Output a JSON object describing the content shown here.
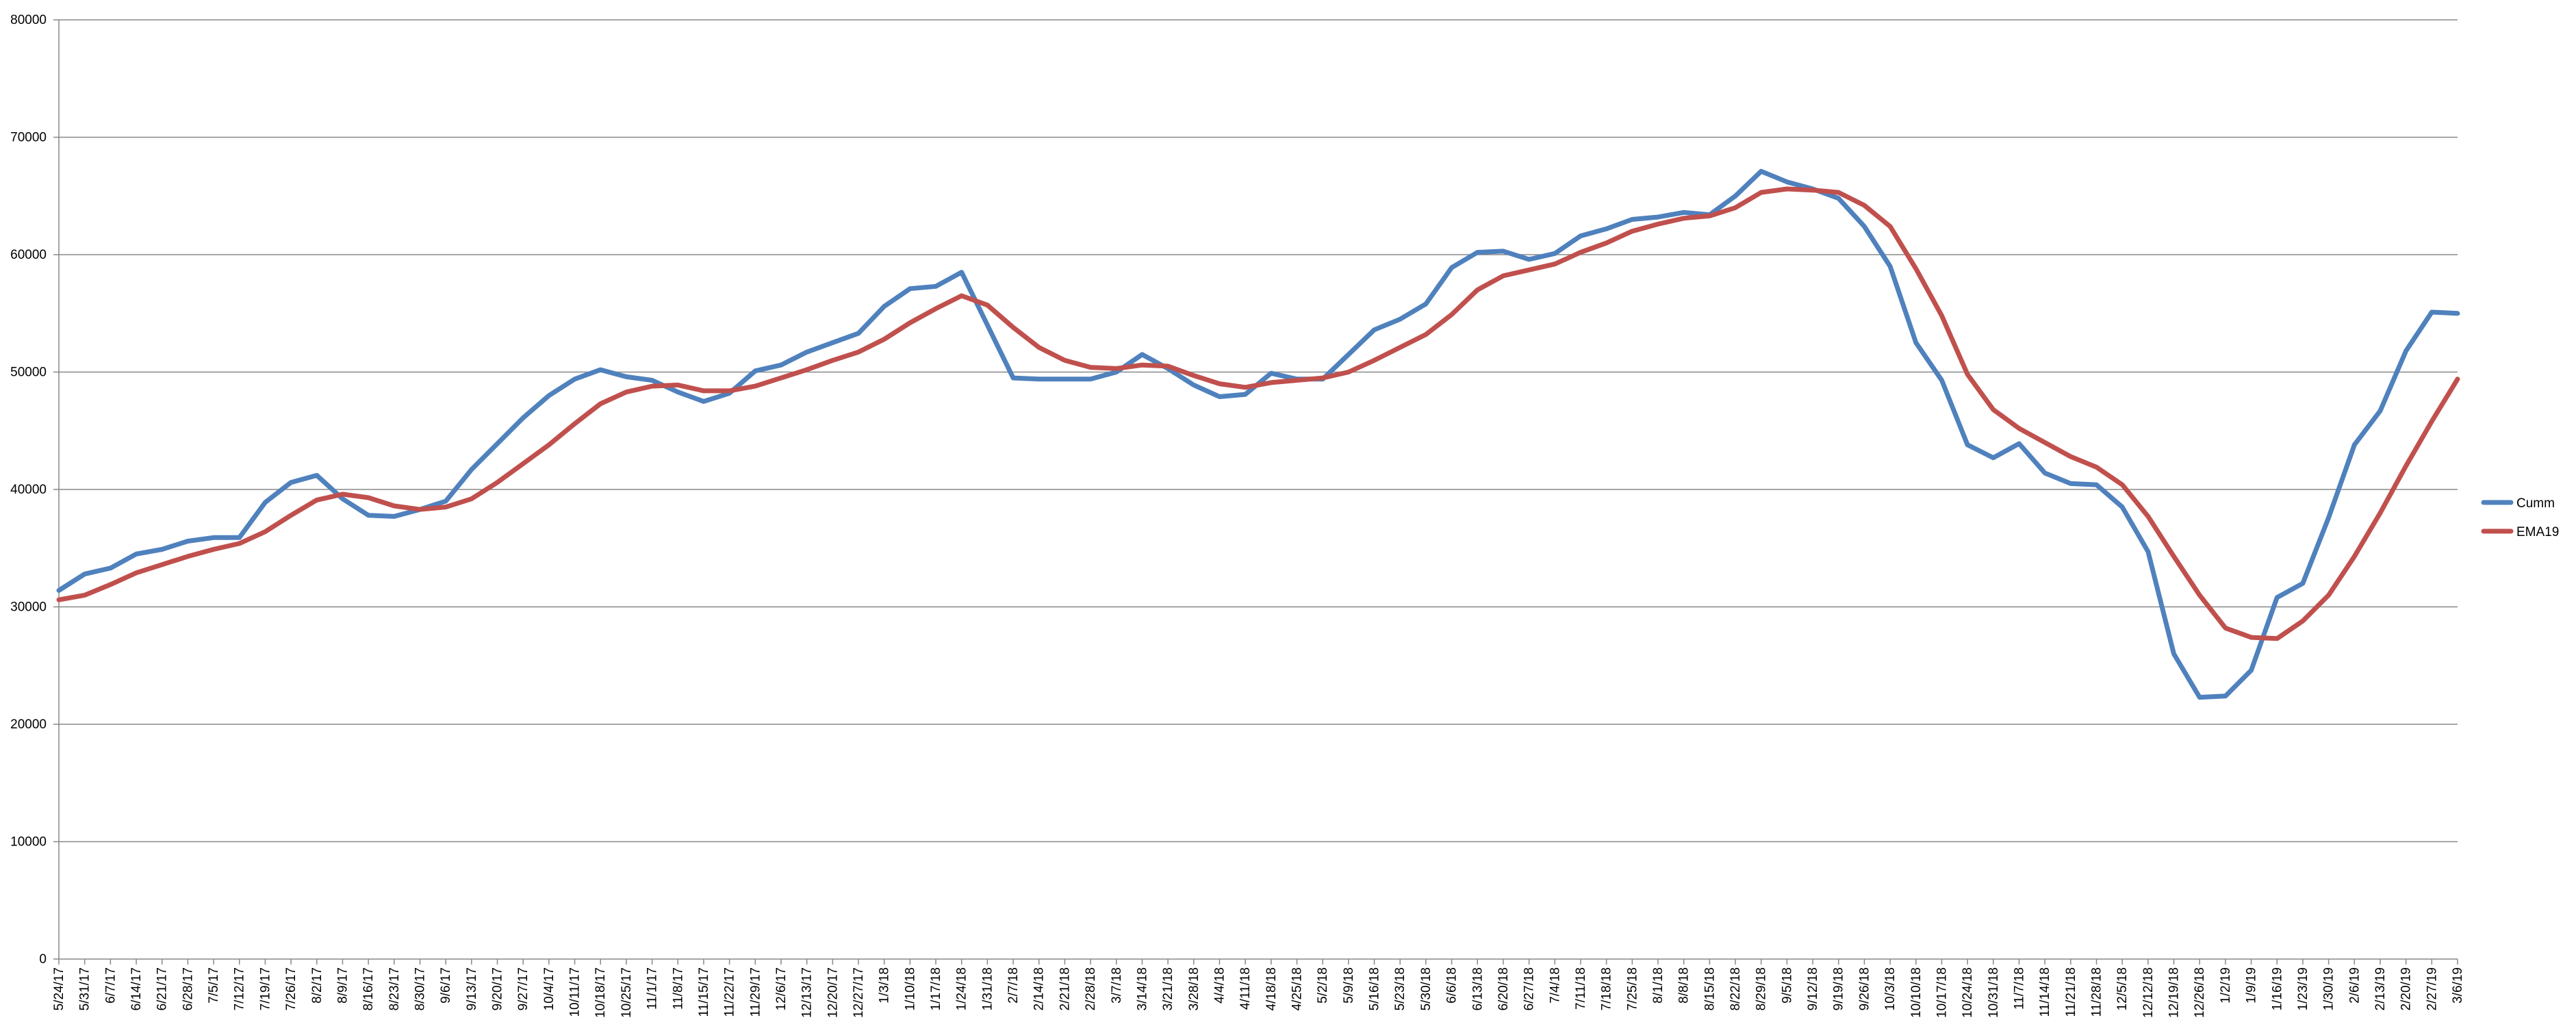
{
  "chart_data": {
    "type": "line",
    "title": "",
    "xlabel": "",
    "ylabel": "",
    "ylim": [
      0,
      80000
    ],
    "y_ticks": [
      0,
      10000,
      20000,
      30000,
      40000,
      50000,
      60000,
      70000,
      80000
    ],
    "grid": true,
    "legend_position": "right",
    "x_ticks": [
      "5/24/17",
      "5/31/17",
      "6/7/17",
      "6/14/17",
      "6/21/17",
      "6/28/17",
      "7/5/17",
      "7/12/17",
      "7/19/17",
      "7/26/17",
      "8/2/17",
      "8/9/17",
      "8/16/17",
      "8/23/17",
      "8/30/17",
      "9/6/17",
      "9/13/17",
      "9/20/17",
      "9/27/17",
      "10/4/17",
      "10/11/17",
      "10/18/17",
      "10/25/17",
      "11/1/17",
      "11/8/17",
      "11/15/17",
      "11/22/17",
      "11/29/17",
      "12/6/17",
      "12/13/17",
      "12/20/17",
      "12/27/17",
      "1/3/18",
      "1/10/18",
      "1/17/18",
      "1/24/18",
      "1/31/18",
      "2/7/18",
      "2/14/18",
      "2/21/18",
      "2/28/18",
      "3/7/18",
      "3/14/18",
      "3/21/18",
      "3/28/18",
      "4/4/18",
      "4/11/18",
      "4/18/18",
      "4/25/18",
      "5/2/18",
      "5/9/18",
      "5/16/18",
      "5/23/18",
      "5/30/18",
      "6/6/18",
      "6/13/18",
      "6/20/18",
      "6/27/18",
      "7/4/18",
      "7/11/18",
      "7/18/18",
      "7/25/18",
      "8/1/18",
      "8/8/18",
      "8/15/18",
      "8/22/18",
      "8/29/18",
      "9/5/18",
      "9/12/18",
      "9/19/18",
      "9/26/18",
      "10/3/18",
      "10/10/18",
      "10/17/18",
      "10/24/18",
      "10/31/18",
      "11/7/18",
      "11/14/18",
      "11/21/18",
      "11/28/18",
      "12/5/18",
      "12/12/18",
      "12/19/18",
      "12/26/18",
      "1/2/19",
      "1/9/19",
      "1/16/19",
      "1/23/19",
      "1/30/19",
      "2/6/19",
      "2/13/19",
      "2/20/19",
      "2/27/19",
      "3/6/19"
    ],
    "x": [
      "5/24/17",
      "5/31/17",
      "6/7/17",
      "6/14/17",
      "6/21/17",
      "6/28/17",
      "7/5/17",
      "7/12/17",
      "7/19/17",
      "7/26/17",
      "8/2/17",
      "8/9/17",
      "8/16/17",
      "8/23/17",
      "8/30/17",
      "9/6/17",
      "9/13/17",
      "9/20/17",
      "9/27/17",
      "10/4/17",
      "10/11/17",
      "10/18/17",
      "10/25/17",
      "11/1/17",
      "11/8/17",
      "11/15/17",
      "11/22/17",
      "11/29/17",
      "12/6/17",
      "12/13/17",
      "12/20/17",
      "12/27/17",
      "1/3/18",
      "1/10/18",
      "1/17/18",
      "1/24/18",
      "1/31/18",
      "2/7/18",
      "2/14/18",
      "2/21/18",
      "2/28/18",
      "3/7/18",
      "3/14/18",
      "3/21/18",
      "3/28/18",
      "4/4/18",
      "4/11/18",
      "4/18/18",
      "4/25/18",
      "5/2/18",
      "5/9/18",
      "5/16/18",
      "5/23/18",
      "5/30/18",
      "6/6/18",
      "6/13/18",
      "6/20/18",
      "6/27/18",
      "7/4/18",
      "7/11/18",
      "7/18/18",
      "7/25/18",
      "8/1/18",
      "8/8/18",
      "8/15/18",
      "8/22/18",
      "8/29/18",
      "9/5/18",
      "9/12/18",
      "9/19/18",
      "9/26/18",
      "10/3/18",
      "10/10/18",
      "10/17/18",
      "10/24/18",
      "10/31/18",
      "11/7/18",
      "11/14/18",
      "11/21/18",
      "11/28/18",
      "12/5/18",
      "12/12/18",
      "12/19/18",
      "12/26/18",
      "1/2/19",
      "1/9/19",
      "1/16/19",
      "1/23/19",
      "1/30/19",
      "2/6/19",
      "2/13/19",
      "2/20/19",
      "2/27/19",
      "3/6/19"
    ],
    "series": [
      {
        "name": "Cumm",
        "color": "#4f81bd",
        "values": [
          31400,
          32800,
          33300,
          34500,
          34900,
          35600,
          35900,
          35900,
          38900,
          40600,
          41200,
          39200,
          37800,
          37700,
          38300,
          39000,
          41700,
          43900,
          46100,
          48000,
          49400,
          50200,
          49600,
          49300,
          48300,
          47500,
          48200,
          50100,
          50600,
          51700,
          52500,
          53300,
          55600,
          57100,
          57300,
          58500,
          54000,
          49500,
          49400,
          49400,
          49400,
          50000,
          51500,
          50300,
          48900,
          47900,
          48100,
          49900,
          49400,
          49400,
          51500,
          53600,
          54500,
          55800,
          58900,
          60200,
          60300,
          59600,
          60100,
          61600,
          62200,
          63000,
          63200,
          63600,
          63400,
          65000,
          67100,
          66200,
          65600,
          64800,
          62400,
          59000,
          52500,
          49300,
          43800,
          42700,
          43900,
          41400,
          40500,
          40400,
          38500,
          34700,
          26000,
          22300,
          22400,
          24600,
          30800,
          32000,
          37600,
          43800,
          46700,
          51800,
          55100,
          55000
        ]
      },
      {
        "name": "EMA19",
        "color": "#c0504d",
        "values": [
          30600,
          31000,
          31900,
          32900,
          33600,
          34300,
          34900,
          35400,
          36400,
          37800,
          39100,
          39600,
          39300,
          38600,
          38300,
          38500,
          39200,
          40600,
          42200,
          43800,
          45600,
          47300,
          48300,
          48800,
          48900,
          48400,
          48400,
          48800,
          49500,
          50200,
          51000,
          51700,
          52800,
          54200,
          55400,
          56500,
          55700,
          53800,
          52100,
          51000,
          50400,
          50300,
          50600,
          50500,
          49700,
          49000,
          48700,
          49100,
          49300,
          49500,
          50000,
          51000,
          52100,
          53200,
          54900,
          57000,
          58200,
          58700,
          59200,
          60200,
          61000,
          62000,
          62600,
          63100,
          63300,
          64000,
          65300,
          65600,
          65500,
          65300,
          64200,
          62400,
          58800,
          54800,
          49800,
          46800,
          45200,
          44000,
          42800,
          41900,
          40400,
          37700,
          34300,
          31000,
          28200,
          27400,
          27300,
          28800,
          31000,
          34300,
          38000,
          42000,
          45800,
          49400
        ]
      }
    ]
  }
}
